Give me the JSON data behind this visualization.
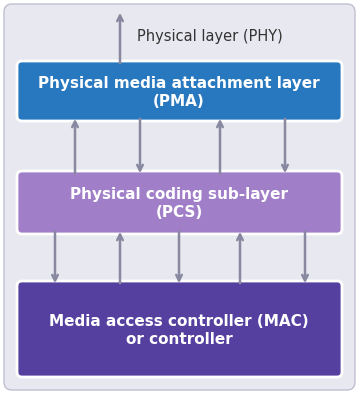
{
  "background_color": "#ffffff",
  "outer_box_color": "#e8e8f0",
  "outer_box_edge_color": "#c0bfd0",
  "phy_label": "Physical layer (PHY)",
  "phy_label_color": "#333333",
  "phy_label_fontsize": 10.5,
  "pma_box_color": "#2878c0",
  "pma_box_edge_color": "#ffffff",
  "pma_text_line1": "Physical media attachment layer",
  "pma_text_line2": "(PMA)",
  "pma_text_color": "#ffffff",
  "pma_text_fontsize": 11,
  "pcs_box_color": "#a07fc8",
  "pcs_box_edge_color": "#ffffff",
  "pcs_text_line1": "Physical coding sub-layer",
  "pcs_text_line2": "(PCS)",
  "pcs_text_color": "#ffffff",
  "pcs_text_fontsize": 11,
  "mac_box_color": "#5540a0",
  "mac_box_edge_color": "#ffffff",
  "mac_text_line1": "Media access controller (MAC)",
  "mac_text_line2": "or controller",
  "mac_text_color": "#ffffff",
  "mac_text_fontsize": 11,
  "arrow_color": "#8888a0",
  "arrow_linewidth": 1.8,
  "fig_width": 3.59,
  "fig_height": 3.94,
  "dpi": 100
}
